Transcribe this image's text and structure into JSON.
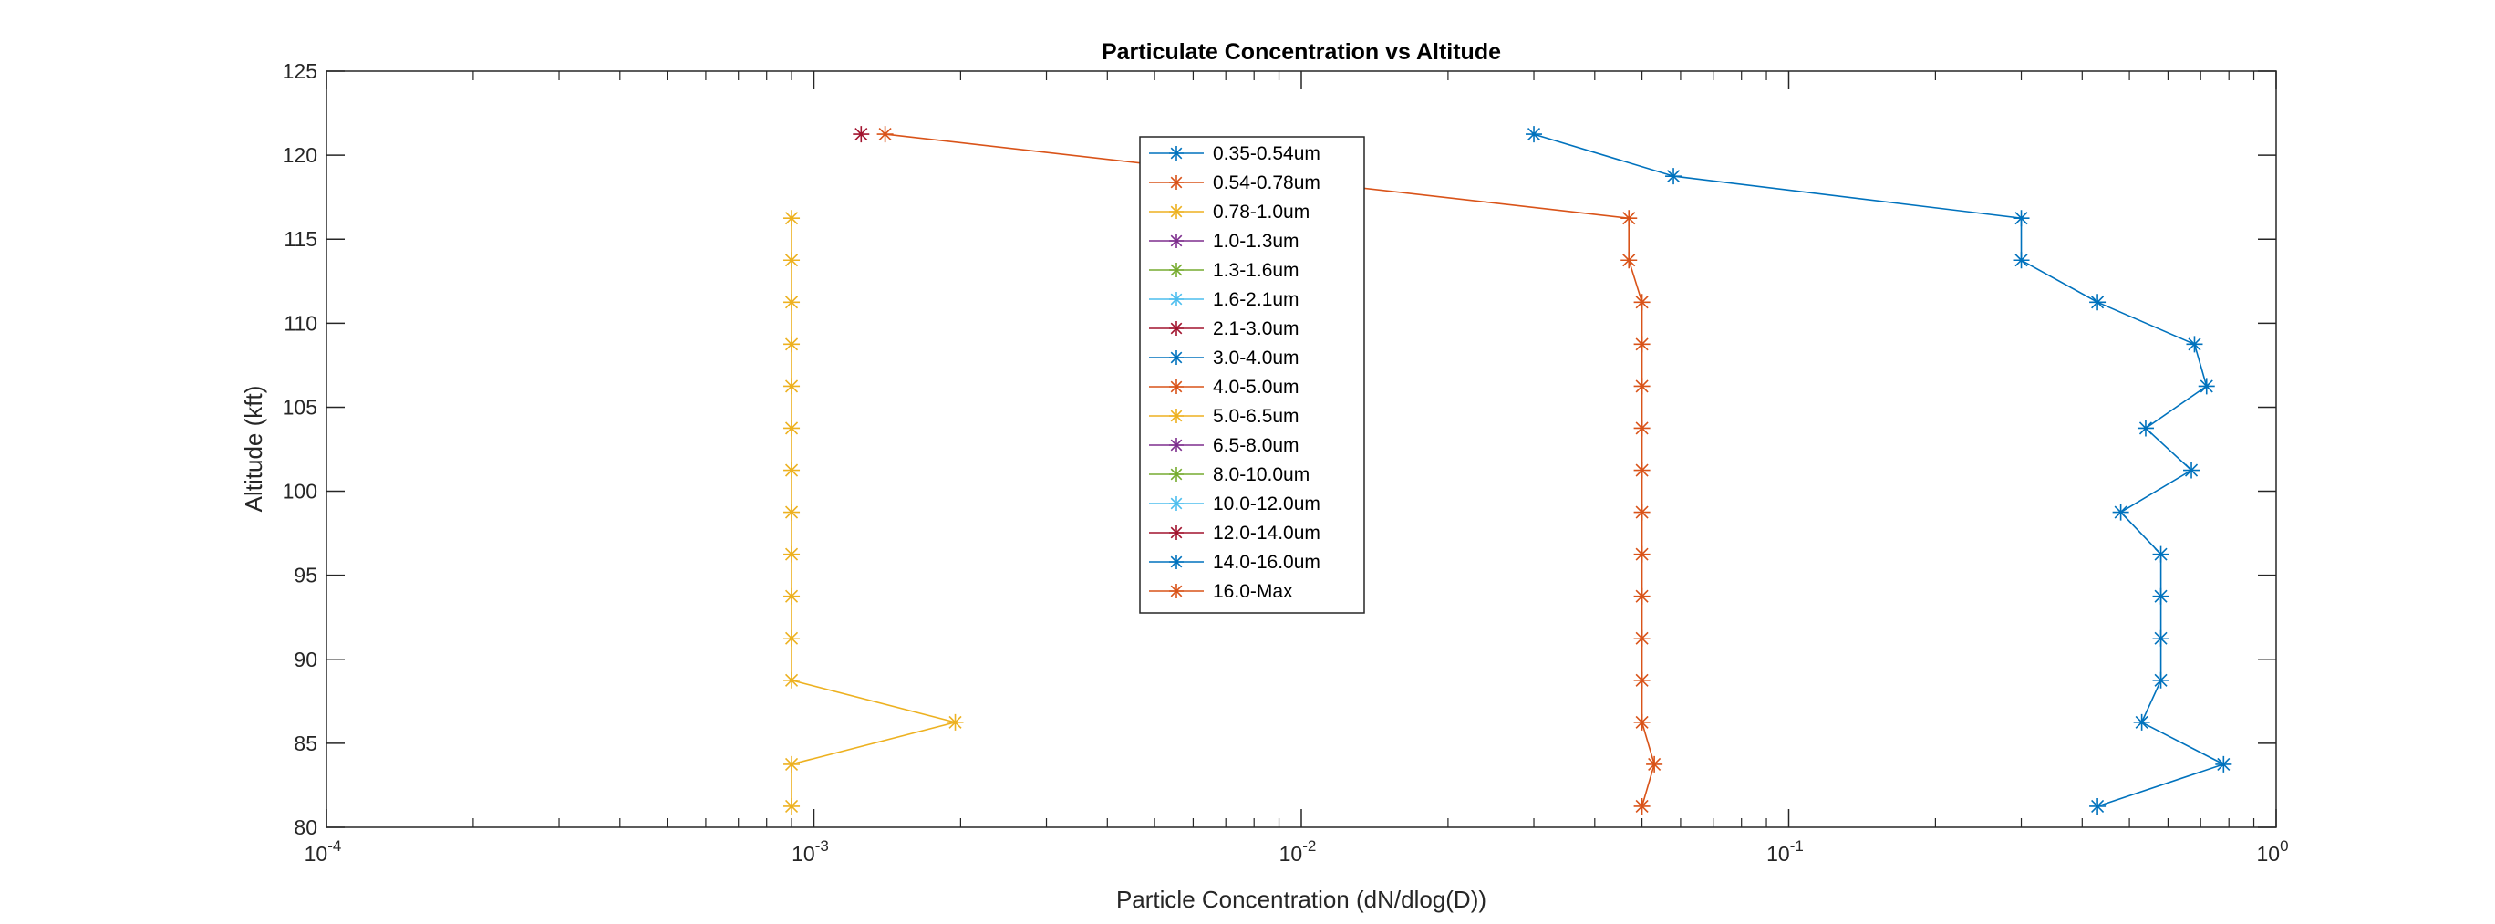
{
  "chart_data": {
    "type": "line",
    "title": "Particulate Concentration vs Altitude",
    "xlabel": "Particle Concentration (dN/dlog(D))",
    "ylabel": "Altitude (kft)",
    "xscale": "log",
    "xlim": [
      0.0001,
      1
    ],
    "ylim": [
      80,
      125
    ],
    "x_ticks": [
      0.0001,
      0.001,
      0.01,
      0.1,
      1
    ],
    "x_tick_labels": [
      {
        "base": "10",
        "exp": "-4"
      },
      {
        "base": "10",
        "exp": "-3"
      },
      {
        "base": "10",
        "exp": "-2"
      },
      {
        "base": "10",
        "exp": "-1"
      },
      {
        "base": "10",
        "exp": "0"
      }
    ],
    "y_ticks": [
      80,
      85,
      90,
      95,
      100,
      105,
      110,
      115,
      120,
      125
    ],
    "y_tick_labels": [
      "80",
      "85",
      "90",
      "95",
      "100",
      "105",
      "110",
      "115",
      "120",
      "125"
    ],
    "grid": false,
    "marker": "asterisk",
    "legend_position": "inside-top-center",
    "series": [
      {
        "name": "0.35-0.54um",
        "color": "#0072BD",
        "points": [
          [
            0.03,
            121.25
          ],
          [
            0.058,
            118.75
          ],
          [
            0.3,
            116.25
          ],
          [
            0.3,
            113.75
          ],
          [
            0.43,
            111.25
          ],
          [
            0.68,
            108.75
          ],
          [
            0.72,
            106.25
          ],
          [
            0.54,
            103.75
          ],
          [
            0.67,
            101.25
          ],
          [
            0.48,
            98.75
          ],
          [
            0.58,
            96.25
          ],
          [
            0.58,
            93.75
          ],
          [
            0.58,
            91.25
          ],
          [
            0.58,
            88.75
          ],
          [
            0.53,
            86.25
          ],
          [
            0.78,
            83.75
          ],
          [
            0.43,
            81.25
          ]
        ]
      },
      {
        "name": "0.54-0.78um",
        "color": "#D95319",
        "points": [
          [
            0.0014,
            121.25
          ],
          [
            0.047,
            116.25
          ],
          [
            0.047,
            113.75
          ],
          [
            0.05,
            111.25
          ],
          [
            0.05,
            108.75
          ],
          [
            0.05,
            106.25
          ],
          [
            0.05,
            103.75
          ],
          [
            0.05,
            101.25
          ],
          [
            0.05,
            98.75
          ],
          [
            0.05,
            96.25
          ],
          [
            0.05,
            93.75
          ],
          [
            0.05,
            91.25
          ],
          [
            0.05,
            88.75
          ],
          [
            0.05,
            86.25
          ],
          [
            0.053,
            83.75
          ],
          [
            0.05,
            81.25
          ]
        ]
      },
      {
        "name": "0.78-1.0um",
        "color": "#EDB120",
        "points": [
          [
            0.0009,
            116.25
          ],
          [
            0.0009,
            113.75
          ],
          [
            0.0009,
            111.25
          ],
          [
            0.0009,
            108.75
          ],
          [
            0.0009,
            106.25
          ],
          [
            0.0009,
            103.75
          ],
          [
            0.0009,
            101.25
          ],
          [
            0.0009,
            98.75
          ],
          [
            0.0009,
            96.25
          ],
          [
            0.0009,
            93.75
          ],
          [
            0.0009,
            91.25
          ],
          [
            0.0009,
            88.75
          ],
          [
            0.00195,
            86.25
          ],
          [
            0.0009,
            83.75
          ],
          [
            0.0009,
            81.25
          ]
        ]
      },
      {
        "name": "1.0-1.3um",
        "color": "#7E2F8E",
        "points": []
      },
      {
        "name": "1.3-1.6um",
        "color": "#77AC30",
        "points": []
      },
      {
        "name": "1.6-2.1um",
        "color": "#4DBEEE",
        "points": []
      },
      {
        "name": "2.1-3.0um",
        "color": "#A2142F",
        "points": [
          [
            0.00125,
            121.25
          ]
        ]
      },
      {
        "name": "3.0-4.0um",
        "color": "#0072BD",
        "points": []
      },
      {
        "name": "4.0-5.0um",
        "color": "#D95319",
        "points": []
      },
      {
        "name": "5.0-6.5um",
        "color": "#EDB120",
        "points": []
      },
      {
        "name": "6.5-8.0um",
        "color": "#7E2F8E",
        "points": []
      },
      {
        "name": "8.0-10.0um",
        "color": "#77AC30",
        "points": []
      },
      {
        "name": "10.0-12.0um",
        "color": "#4DBEEE",
        "points": []
      },
      {
        "name": "12.0-14.0um",
        "color": "#A2142F",
        "points": []
      },
      {
        "name": "14.0-16.0um",
        "color": "#0072BD",
        "points": []
      },
      {
        "name": "16.0-Max",
        "color": "#D95319",
        "points": []
      }
    ]
  }
}
